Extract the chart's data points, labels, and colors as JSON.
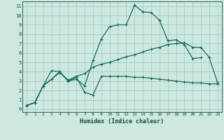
{
  "bg_color": "#cce8e0",
  "grid_color": "#aacccc",
  "line_color": "#1a6b5a",
  "xlabel": "Humidex (Indice chaleur)",
  "xlim": [
    -0.5,
    23.5
  ],
  "ylim": [
    -0.3,
    11.5
  ],
  "xticks": [
    0,
    1,
    2,
    3,
    4,
    5,
    6,
    7,
    8,
    9,
    10,
    11,
    12,
    13,
    14,
    15,
    16,
    17,
    18,
    19,
    20,
    21,
    22,
    23
  ],
  "yticks": [
    0,
    1,
    2,
    3,
    4,
    5,
    6,
    7,
    8,
    9,
    10,
    11
  ],
  "series": [
    {
      "x": [
        0,
        1,
        2,
        3,
        4,
        5,
        6,
        7,
        8,
        9,
        10,
        11,
        12,
        13,
        14,
        15,
        16,
        17,
        18,
        19,
        20,
        21
      ],
      "y": [
        0.4,
        0.7,
        2.5,
        4.1,
        4.0,
        3.0,
        3.2,
        2.5,
        5.2,
        7.5,
        8.8,
        9.0,
        9.0,
        11.1,
        10.4,
        10.3,
        9.5,
        7.3,
        7.4,
        6.9,
        5.4,
        5.5
      ]
    },
    {
      "x": [
        0,
        1,
        2,
        3,
        4,
        5,
        6,
        7,
        8,
        9,
        10,
        11,
        12,
        13,
        14,
        15,
        16,
        17,
        18,
        19,
        20,
        21,
        22,
        23
      ],
      "y": [
        0.4,
        0.7,
        2.5,
        3.2,
        4.0,
        3.0,
        3.4,
        1.8,
        1.5,
        3.5,
        3.5,
        3.5,
        3.5,
        3.4,
        3.4,
        3.3,
        3.2,
        3.1,
        3.0,
        2.9,
        2.8,
        2.8,
        2.7,
        2.7
      ]
    },
    {
      "x": [
        0,
        1,
        2,
        3,
        4,
        5,
        6,
        7,
        8,
        9,
        10,
        11,
        12,
        13,
        14,
        15,
        16,
        17,
        18,
        19,
        20,
        21,
        22,
        23
      ],
      "y": [
        0.4,
        0.7,
        2.5,
        3.2,
        3.9,
        3.1,
        3.5,
        3.8,
        4.5,
        4.8,
        5.0,
        5.3,
        5.6,
        5.8,
        6.1,
        6.4,
        6.6,
        6.9,
        7.0,
        7.1,
        6.6,
        6.6,
        5.5,
        2.8
      ]
    }
  ]
}
